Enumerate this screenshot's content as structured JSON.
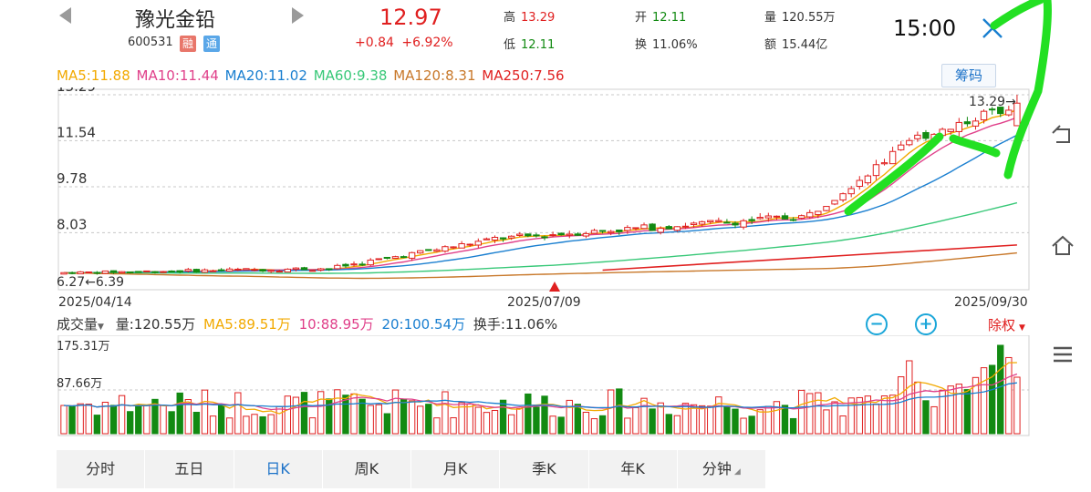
{
  "header": {
    "stock_name": "豫光金铅",
    "stock_code": "600531",
    "tag_margin": "融",
    "tag_connect": "通",
    "price": "12.97",
    "change": "+0.84",
    "change_pct": "+6.92%",
    "high_label": "高",
    "high": "13.29",
    "low_label": "低",
    "low": "12.11",
    "open_label": "开",
    "open": "12.11",
    "turnover_label": "换",
    "turnover": "11.06%",
    "volume_label": "量",
    "volume": "120.55万",
    "amount_label": "额",
    "amount": "15.44亿",
    "time": "15:00"
  },
  "ma_legend": {
    "ma5": "MA5:11.88",
    "ma10": "MA10:11.44",
    "ma20": "MA20:11.02",
    "ma60": "MA60:9.38",
    "ma120": "MA120:8.31",
    "ma250": "MA250:7.56"
  },
  "chip_button": "筹码",
  "price_axis": [
    "13.29",
    "11.54",
    "9.78",
    "8.03"
  ],
  "low_label": "6.27←6.39",
  "high_marker": "13.29→",
  "dates": [
    "2025/04/14",
    "2025/07/09",
    "2025/09/30"
  ],
  "volume": {
    "title": "成交量",
    "vol": "量:120.55万",
    "ma5": "MA5:89.51万",
    "ma10": "10:88.95万",
    "ma20": "20:100.54万",
    "turnover": "换手:11.06%",
    "axis_top": "175.31万",
    "axis_mid": "87.66万",
    "zoom_out": "−",
    "zoom_in": "+",
    "adjust": "除权"
  },
  "tabs": [
    "分时",
    "五日",
    "日K",
    "周K",
    "月K",
    "季K",
    "年K",
    "分钟"
  ],
  "active_tab": "日K",
  "colors": {
    "up": "#e02020",
    "down": "#128a12",
    "ma5": "#f2a900",
    "ma10": "#e0408a",
    "ma20": "#1a7fd0",
    "ma60": "#38c878",
    "ma120": "#c8782a",
    "ma250": "#e02020",
    "annotation": "#22e022"
  },
  "chart_data": {
    "type": "candlestick",
    "price_ticks": [
      13.29,
      11.54,
      9.78,
      8.03,
      6.27
    ],
    "price_range": [
      6.27,
      13.29
    ],
    "date_labels": [
      "2025/04/14",
      "2025/07/09",
      "2025/09/30"
    ],
    "last": {
      "open": 12.11,
      "high": 13.29,
      "low": 12.11,
      "close": 12.97
    },
    "volume_ticks": [
      175.31,
      87.66
    ],
    "volume_unit": "万"
  }
}
